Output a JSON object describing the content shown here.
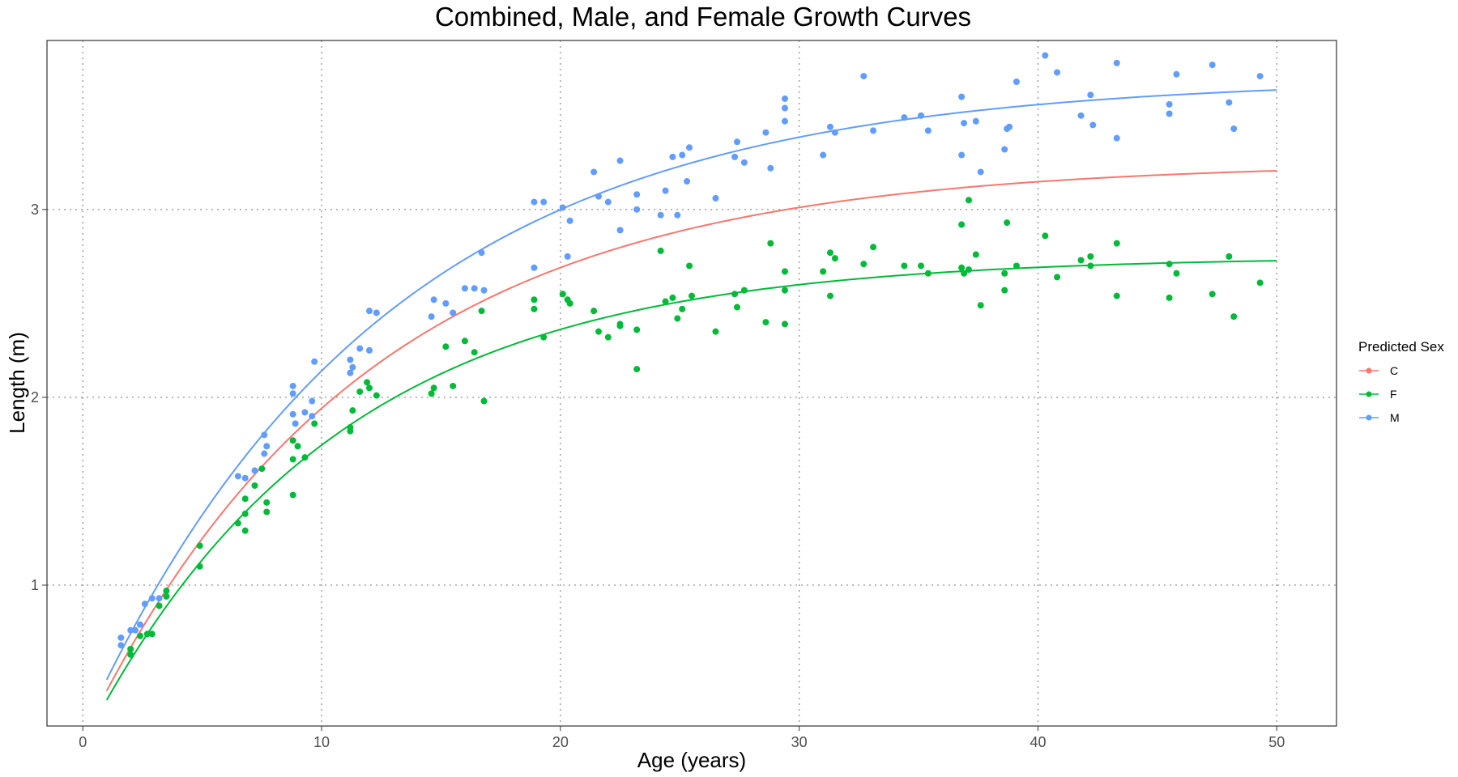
{
  "chart_data": {
    "type": "scatter",
    "title": "Combined, Male, and Female Growth Curves",
    "xlabel": "Age (years)",
    "ylabel": "Length (m)",
    "xlim": [
      -1.5,
      52.5
    ],
    "ylim": [
      0.25,
      3.9
    ],
    "x_ticks": [
      0,
      10,
      20,
      30,
      40,
      50
    ],
    "y_ticks": [
      1,
      2,
      3
    ],
    "grid": true,
    "legend_position": "right",
    "legend": {
      "title": "Predicted Sex",
      "entries": [
        {
          "label": "C",
          "color": "#F8766D"
        },
        {
          "label": "F",
          "color": "#00BA38"
        },
        {
          "label": "M",
          "color": "#619CFF"
        }
      ]
    },
    "curves": [
      {
        "name": "C",
        "color": "#F8766D",
        "Linf": 3.25,
        "k": 0.085,
        "t0": -0.7,
        "x_range": [
          1,
          50
        ]
      },
      {
        "name": "F",
        "color": "#00BA38",
        "Linf": 2.75,
        "k": 0.095,
        "t0": -0.6,
        "x_range": [
          1,
          50
        ]
      },
      {
        "name": "M",
        "color": "#619CFF",
        "Linf": 3.7,
        "k": 0.08,
        "t0": -0.8,
        "x_range": [
          1,
          50
        ]
      }
    ],
    "series": [
      {
        "name": "M",
        "color": "#619CFF",
        "points": [
          [
            1.6,
            0.72
          ],
          [
            1.6,
            0.68
          ],
          [
            2.0,
            0.76
          ],
          [
            2.2,
            0.76
          ],
          [
            2.4,
            0.79
          ],
          [
            2.6,
            0.9
          ],
          [
            2.9,
            0.93
          ],
          [
            3.2,
            0.93
          ],
          [
            6.5,
            1.58
          ],
          [
            6.8,
            1.57
          ],
          [
            7.2,
            1.61
          ],
          [
            7.6,
            1.8
          ],
          [
            7.7,
            1.74
          ],
          [
            7.6,
            1.7
          ],
          [
            8.8,
            2.06
          ],
          [
            8.8,
            2.02
          ],
          [
            8.8,
            1.91
          ],
          [
            8.9,
            1.86
          ],
          [
            9.3,
            1.92
          ],
          [
            9.6,
            1.98
          ],
          [
            9.6,
            1.9
          ],
          [
            9.7,
            2.19
          ],
          [
            11.2,
            2.2
          ],
          [
            11.2,
            2.13
          ],
          [
            11.3,
            2.16
          ],
          [
            11.6,
            2.26
          ],
          [
            12.0,
            2.25
          ],
          [
            12.0,
            2.46
          ],
          [
            12.3,
            2.45
          ],
          [
            14.6,
            2.43
          ],
          [
            14.7,
            2.52
          ],
          [
            15.2,
            2.5
          ],
          [
            15.5,
            2.45
          ],
          [
            16.0,
            2.58
          ],
          [
            16.4,
            2.58
          ],
          [
            16.8,
            2.57
          ],
          [
            16.7,
            2.77
          ],
          [
            18.9,
            2.69
          ],
          [
            18.9,
            3.04
          ],
          [
            19.3,
            3.04
          ],
          [
            20.1,
            3.01
          ],
          [
            20.3,
            2.75
          ],
          [
            20.4,
            2.94
          ],
          [
            21.4,
            3.2
          ],
          [
            21.6,
            3.07
          ],
          [
            22.0,
            3.04
          ],
          [
            22.5,
            3.26
          ],
          [
            22.5,
            2.89
          ],
          [
            23.2,
            3.08
          ],
          [
            23.2,
            3.0
          ],
          [
            24.2,
            2.97
          ],
          [
            24.4,
            3.1
          ],
          [
            24.7,
            3.28
          ],
          [
            24.9,
            2.97
          ],
          [
            25.1,
            3.29
          ],
          [
            25.3,
            3.15
          ],
          [
            25.4,
            3.33
          ],
          [
            26.5,
            3.06
          ],
          [
            27.3,
            3.28
          ],
          [
            27.4,
            3.36
          ],
          [
            27.7,
            3.25
          ],
          [
            28.6,
            3.41
          ],
          [
            28.8,
            3.22
          ],
          [
            29.4,
            3.59
          ],
          [
            29.4,
            3.54
          ],
          [
            29.4,
            3.47
          ],
          [
            31.0,
            3.29
          ],
          [
            31.3,
            3.44
          ],
          [
            31.5,
            3.41
          ],
          [
            32.7,
            3.71
          ],
          [
            33.1,
            3.42
          ],
          [
            34.4,
            3.49
          ],
          [
            35.1,
            3.5
          ],
          [
            35.4,
            3.42
          ],
          [
            36.8,
            3.29
          ],
          [
            36.8,
            3.6
          ],
          [
            36.9,
            3.46
          ],
          [
            37.4,
            3.47
          ],
          [
            37.6,
            3.2
          ],
          [
            38.6,
            3.32
          ],
          [
            38.7,
            3.43
          ],
          [
            38.8,
            3.44
          ],
          [
            39.1,
            3.68
          ],
          [
            40.3,
            3.82
          ],
          [
            40.8,
            3.73
          ],
          [
            41.8,
            3.5
          ],
          [
            42.2,
            3.61
          ],
          [
            42.3,
            3.45
          ],
          [
            43.3,
            3.38
          ],
          [
            43.3,
            3.78
          ],
          [
            45.5,
            3.51
          ],
          [
            45.5,
            3.56
          ],
          [
            45.8,
            3.72
          ],
          [
            47.3,
            3.77
          ],
          [
            48.0,
            3.57
          ],
          [
            48.2,
            3.43
          ],
          [
            49.3,
            3.71
          ]
        ]
      },
      {
        "name": "F",
        "color": "#00BA38",
        "points": [
          [
            2.0,
            0.63
          ],
          [
            2.0,
            0.66
          ],
          [
            2.4,
            0.73
          ],
          [
            2.7,
            0.74
          ],
          [
            2.9,
            0.74
          ],
          [
            3.2,
            0.89
          ],
          [
            3.5,
            0.94
          ],
          [
            3.5,
            0.97
          ],
          [
            4.9,
            1.21
          ],
          [
            4.9,
            1.1
          ],
          [
            6.5,
            1.33
          ],
          [
            6.8,
            1.38
          ],
          [
            6.8,
            1.29
          ],
          [
            6.8,
            1.46
          ],
          [
            7.2,
            1.53
          ],
          [
            7.5,
            1.62
          ],
          [
            7.7,
            1.44
          ],
          [
            7.7,
            1.39
          ],
          [
            8.8,
            1.77
          ],
          [
            8.8,
            1.67
          ],
          [
            8.8,
            1.48
          ],
          [
            9.0,
            1.74
          ],
          [
            9.3,
            1.68
          ],
          [
            9.7,
            1.86
          ],
          [
            11.2,
            1.84
          ],
          [
            11.2,
            1.82
          ],
          [
            11.3,
            1.93
          ],
          [
            11.6,
            2.03
          ],
          [
            11.9,
            2.08
          ],
          [
            12.0,
            2.05
          ],
          [
            12.3,
            2.01
          ],
          [
            14.6,
            2.02
          ],
          [
            14.7,
            2.05
          ],
          [
            15.2,
            2.27
          ],
          [
            15.5,
            2.06
          ],
          [
            16.0,
            2.3
          ],
          [
            16.4,
            2.24
          ],
          [
            16.7,
            2.46
          ],
          [
            16.8,
            1.98
          ],
          [
            18.9,
            2.52
          ],
          [
            18.9,
            2.47
          ],
          [
            19.3,
            2.32
          ],
          [
            20.1,
            2.55
          ],
          [
            20.3,
            2.52
          ],
          [
            20.4,
            2.5
          ],
          [
            21.4,
            2.46
          ],
          [
            21.6,
            2.35
          ],
          [
            22.0,
            2.32
          ],
          [
            22.5,
            2.38
          ],
          [
            22.5,
            2.39
          ],
          [
            23.2,
            2.36
          ],
          [
            23.2,
            2.15
          ],
          [
            24.2,
            2.78
          ],
          [
            24.4,
            2.51
          ],
          [
            24.7,
            2.53
          ],
          [
            24.9,
            2.42
          ],
          [
            25.1,
            2.47
          ],
          [
            25.4,
            2.7
          ],
          [
            25.5,
            2.54
          ],
          [
            26.5,
            2.35
          ],
          [
            27.3,
            2.55
          ],
          [
            27.4,
            2.48
          ],
          [
            27.7,
            2.57
          ],
          [
            28.6,
            2.4
          ],
          [
            28.8,
            2.82
          ],
          [
            29.4,
            2.57
          ],
          [
            29.4,
            2.67
          ],
          [
            29.4,
            2.39
          ],
          [
            31.0,
            2.67
          ],
          [
            31.3,
            2.77
          ],
          [
            31.3,
            2.54
          ],
          [
            31.5,
            2.74
          ],
          [
            32.7,
            2.71
          ],
          [
            33.1,
            2.8
          ],
          [
            34.4,
            2.7
          ],
          [
            35.1,
            2.7
          ],
          [
            35.4,
            2.66
          ],
          [
            36.8,
            2.92
          ],
          [
            36.8,
            2.69
          ],
          [
            36.9,
            2.66
          ],
          [
            37.1,
            3.05
          ],
          [
            37.1,
            2.68
          ],
          [
            37.4,
            2.76
          ],
          [
            37.6,
            2.49
          ],
          [
            38.6,
            2.57
          ],
          [
            38.6,
            2.66
          ],
          [
            38.7,
            2.93
          ],
          [
            39.1,
            2.7
          ],
          [
            40.3,
            2.86
          ],
          [
            40.8,
            2.64
          ],
          [
            41.8,
            2.73
          ],
          [
            42.2,
            2.75
          ],
          [
            42.2,
            2.7
          ],
          [
            43.3,
            2.82
          ],
          [
            43.3,
            2.54
          ],
          [
            45.5,
            2.71
          ],
          [
            45.5,
            2.53
          ],
          [
            45.8,
            2.66
          ],
          [
            47.3,
            2.55
          ],
          [
            48.0,
            2.75
          ],
          [
            48.2,
            2.43
          ],
          [
            49.3,
            2.61
          ]
        ]
      }
    ]
  }
}
